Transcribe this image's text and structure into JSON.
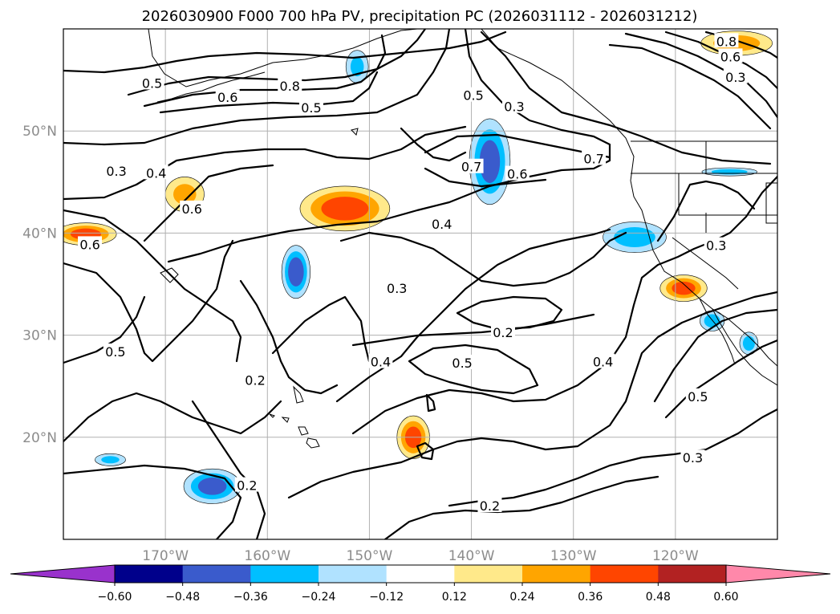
{
  "chart_data": {
    "type": "contour-map",
    "title": "2026030900 F000 700 hPa PV, precipitation PC (2026031112 - 2026031212)",
    "projection": "equirectangular",
    "lon_range": [
      -180,
      -110
    ],
    "lat_range": [
      10,
      60
    ],
    "lon_ticks": [
      {
        "value": -170,
        "label": "170°W"
      },
      {
        "value": -160,
        "label": "160°W"
      },
      {
        "value": -150,
        "label": "150°W"
      },
      {
        "value": -140,
        "label": "140°W"
      },
      {
        "value": -130,
        "label": "130°W"
      },
      {
        "value": -120,
        "label": "120°W"
      }
    ],
    "lat_ticks": [
      {
        "value": 20,
        "label": "20°N"
      },
      {
        "value": 30,
        "label": "30°N"
      },
      {
        "value": 40,
        "label": "40°N"
      },
      {
        "value": 50,
        "label": "50°N"
      }
    ],
    "colorbar": {
      "levels": [
        -0.6,
        -0.48,
        -0.36,
        -0.24,
        -0.12,
        0.12,
        0.24,
        0.36,
        0.48,
        0.6
      ],
      "tick_labels": [
        "−0.60",
        "−0.48",
        "−0.36",
        "−0.24",
        "−0.12",
        "0.12",
        "0.24",
        "0.36",
        "0.48",
        "0.60"
      ],
      "colors": [
        "#9932cc",
        "#00008b",
        "#3a5bcc",
        "#00bfff",
        "#b0e2ff",
        "#ffffff",
        "#ffe98a",
        "#ffa500",
        "#ff4500",
        "#b22222",
        "#ff88aa"
      ],
      "extend": "both"
    },
    "contour_labels": [
      {
        "text": "0.5",
        "lon": -171.3,
        "lat": 54.7
      },
      {
        "text": "0.8",
        "lon": -157.8,
        "lat": 54.4
      },
      {
        "text": "0.6",
        "lon": -163.9,
        "lat": 53.3
      },
      {
        "text": "0.5",
        "lon": -155.7,
        "lat": 52.3
      },
      {
        "text": "0.5",
        "lon": -139.8,
        "lat": 53.5
      },
      {
        "text": "0.3",
        "lon": -135.8,
        "lat": 52.4
      },
      {
        "text": "0.7",
        "lon": -140.0,
        "lat": 46.5
      },
      {
        "text": "0.6",
        "lon": -135.5,
        "lat": 45.8
      },
      {
        "text": "0.7",
        "lon": -128.0,
        "lat": 47.3
      },
      {
        "text": "0.4",
        "lon": -142.9,
        "lat": 40.9
      },
      {
        "text": "0.3",
        "lon": -174.8,
        "lat": 46.1
      },
      {
        "text": "0.4",
        "lon": -170.9,
        "lat": 45.9
      },
      {
        "text": "0.6",
        "lon": -167.4,
        "lat": 42.4
      },
      {
        "text": "0.6",
        "lon": -177.4,
        "lat": 38.9
      },
      {
        "text": "0.3",
        "lon": -147.3,
        "lat": 34.6
      },
      {
        "text": "0.2",
        "lon": -136.9,
        "lat": 30.3
      },
      {
        "text": "0.5",
        "lon": -140.9,
        "lat": 27.3
      },
      {
        "text": "0.4",
        "lon": -148.9,
        "lat": 27.4
      },
      {
        "text": "0.4",
        "lon": -127.1,
        "lat": 27.4
      },
      {
        "text": "0.5",
        "lon": -174.9,
        "lat": 28.4
      },
      {
        "text": "0.2",
        "lon": -161.2,
        "lat": 25.6
      },
      {
        "text": "0.5",
        "lon": -117.8,
        "lat": 24.0
      },
      {
        "text": "0.3",
        "lon": -118.3,
        "lat": 18.0
      },
      {
        "text": "0.2",
        "lon": -162.0,
        "lat": 15.3
      },
      {
        "text": "0.2",
        "lon": -138.2,
        "lat": 13.3
      },
      {
        "text": "0.3",
        "lon": -116.0,
        "lat": 38.8
      },
      {
        "text": "0.8",
        "lon": -115.0,
        "lat": 58.8
      },
      {
        "text": "0.6",
        "lon": -114.6,
        "lat": 57.3
      },
      {
        "text": "0.3",
        "lon": -114.1,
        "lat": 55.3
      }
    ],
    "precip_areas": [
      {
        "lon": -152.4,
        "lat": 42.4,
        "rlon": 4.4,
        "rlat": 2.2,
        "peak": 0.42
      },
      {
        "lon": -177.8,
        "lat": 39.9,
        "rlon": 3.0,
        "rlat": 1.1,
        "peak": 0.4
      },
      {
        "lon": -168.1,
        "lat": 43.8,
        "rlon": 1.9,
        "rlat": 1.7,
        "peak": 0.26
      },
      {
        "lon": -145.7,
        "lat": 20.0,
        "rlon": 1.6,
        "rlat": 2.1,
        "peak": 0.4
      },
      {
        "lon": -119.2,
        "lat": 34.6,
        "rlon": 2.3,
        "rlat": 1.3,
        "peak": 0.4
      },
      {
        "lon": -114.0,
        "lat": 58.6,
        "rlon": 3.5,
        "rlat": 1.2,
        "peak": 0.3
      },
      {
        "lon": -157.2,
        "lat": 36.2,
        "rlon": 1.4,
        "rlat": 2.6,
        "peak": -0.44
      },
      {
        "lon": -138.2,
        "lat": 47.0,
        "rlon": 2.0,
        "rlat": 4.2,
        "peak": -0.4
      },
      {
        "lon": -124.0,
        "lat": 39.6,
        "rlon": 3.1,
        "rlat": 1.5,
        "peak": -0.3
      },
      {
        "lon": -165.4,
        "lat": 15.2,
        "rlon": 2.8,
        "rlat": 1.7,
        "peak": -0.4
      },
      {
        "lon": -151.2,
        "lat": 56.3,
        "rlon": 1.1,
        "rlat": 1.6,
        "peak": -0.26
      },
      {
        "lon": -114.7,
        "lat": 46.0,
        "rlon": 2.7,
        "rlat": 0.4,
        "peak": -0.3
      },
      {
        "lon": -116.4,
        "lat": 31.4,
        "rlon": 1.2,
        "rlat": 1.0,
        "peak": -0.3
      },
      {
        "lon": -112.8,
        "lat": 29.2,
        "rlon": 0.9,
        "rlat": 1.1,
        "peak": -0.3
      },
      {
        "lon": -175.4,
        "lat": 17.8,
        "rlon": 1.5,
        "rlat": 0.6,
        "peak": -0.26
      }
    ]
  }
}
